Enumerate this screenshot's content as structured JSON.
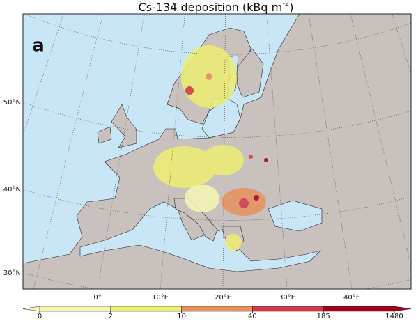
{
  "title": {
    "main": "Cs-134 deposition (kBq m",
    "superscript": "-2",
    "end": ")"
  },
  "panel_label": "a",
  "lat_labels": [
    "50°N",
    "40°N",
    "30°N"
  ],
  "lon_labels": [
    "0°",
    "10°E",
    "20°E",
    "30°E",
    "40°E"
  ],
  "colorbar": {
    "ticks": [
      0,
      2,
      10,
      40,
      185,
      1480
    ],
    "colors": [
      "#f6f6b4",
      "#eeee72",
      "#e6925c",
      "#d23848",
      "#a4001c"
    ]
  }
}
